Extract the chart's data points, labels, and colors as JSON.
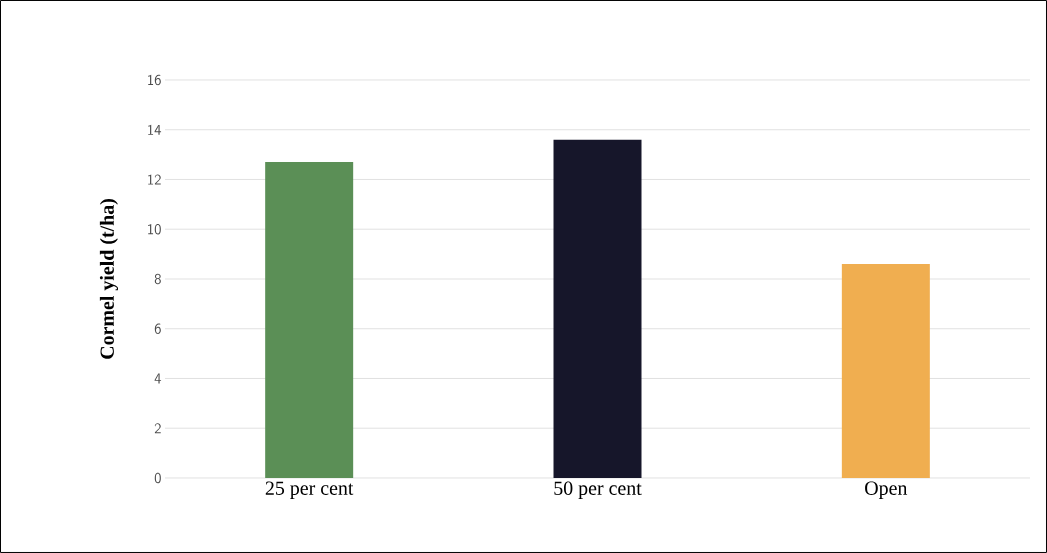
{
  "chart_data": {
    "type": "bar",
    "ylabel": "**Cormel yield (t/ha)**",
    "categories": [
      "25 per cent",
      "50 per cent",
      "Open"
    ],
    "values": [
      12.7,
      13.6,
      8.6
    ],
    "colors": [
      "#5b8f56",
      "#16162a",
      "#f0ae50"
    ],
    "ylim": [
      0,
      16
    ],
    "yticks": [
      0,
      2,
      4,
      6,
      8,
      10,
      12,
      14,
      16
    ],
    "grid": "y"
  }
}
